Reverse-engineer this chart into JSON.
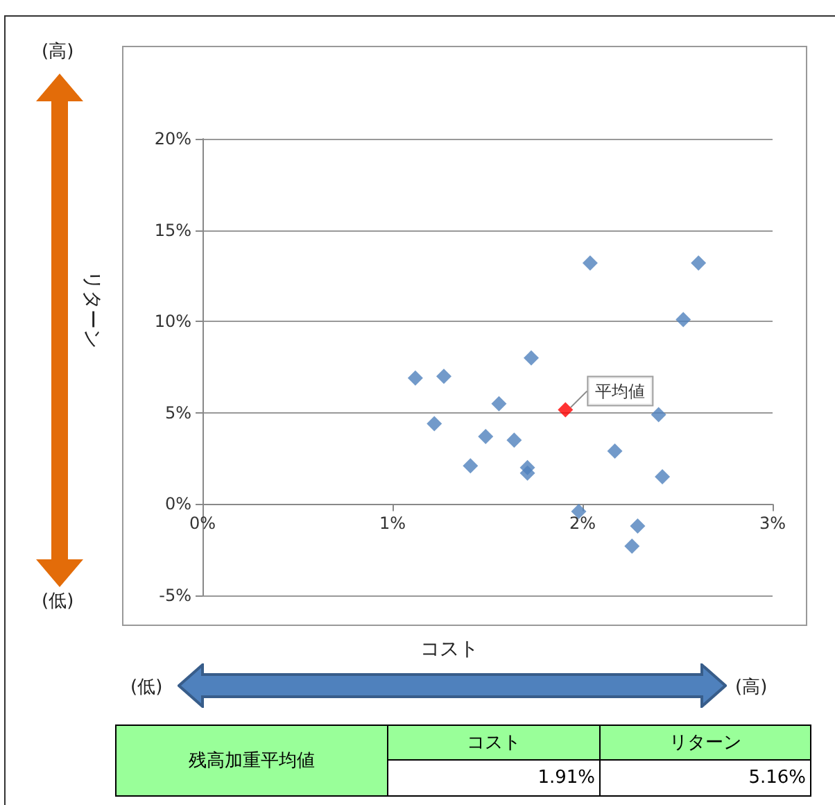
{
  "chart_data": {
    "type": "scatter",
    "xlabel": "コスト",
    "ylabel": "リターン",
    "xlim": [
      0,
      3
    ],
    "xticks": [
      {
        "value": 0,
        "label": "0%"
      },
      {
        "value": 1,
        "label": "1%"
      },
      {
        "value": 2,
        "label": "2%"
      },
      {
        "value": 3,
        "label": "3%"
      }
    ],
    "ylim": [
      -5,
      20
    ],
    "yticks": [
      {
        "value": -5,
        "label": "-5%"
      },
      {
        "value": 0,
        "label": "0%"
      },
      {
        "value": 5,
        "label": "5%"
      },
      {
        "value": 10,
        "label": "10%"
      },
      {
        "value": 15,
        "label": "15%"
      },
      {
        "value": 20,
        "label": "20%"
      }
    ],
    "grid": "y",
    "legend": false,
    "marker": "diamond",
    "series": [
      {
        "color": "#4f81bd",
        "x": [
          1.12,
          1.27,
          1.22,
          1.41,
          1.49,
          1.56,
          1.64,
          1.73,
          1.71,
          1.71,
          2.04,
          1.98,
          2.17,
          2.29,
          2.26,
          2.4,
          2.42,
          2.53,
          2.61
        ],
        "values": [
          6.9,
          7.0,
          4.4,
          2.1,
          3.7,
          5.5,
          3.5,
          8.0,
          2.0,
          1.7,
          13.2,
          -0.4,
          2.9,
          -1.2,
          -2.3,
          4.9,
          1.5,
          10.1,
          13.2
        ]
      },
      {
        "name": "平均値",
        "color": "#ff0000",
        "x": [
          1.91
        ],
        "values": [
          5.16
        ]
      }
    ],
    "annotations": [
      "(高)",
      "(低)",
      "(低)",
      "(高)",
      "残高加重平均値",
      "コスト",
      "リターン",
      "1.91%",
      "5.16%"
    ]
  }
}
